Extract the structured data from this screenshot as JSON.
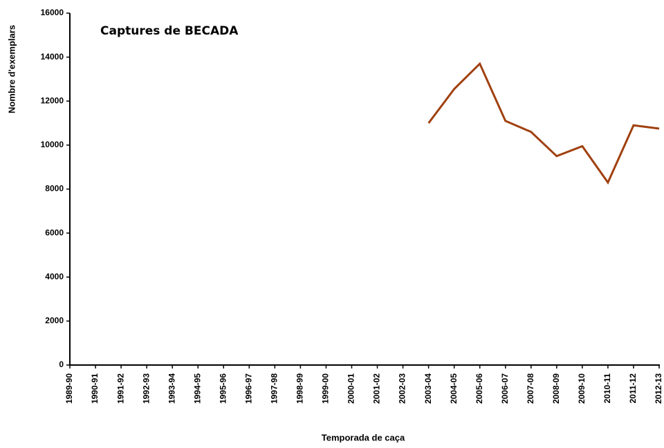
{
  "chart_data": {
    "type": "line",
    "title": "Captures de BECADA",
    "x_label": "Temporada de caça",
    "y_label": "Nombre d'exemplars",
    "categories": [
      "1989-90",
      "1990-91",
      "1991-92",
      "1992-93",
      "1993-94",
      "1994-95",
      "1995-96",
      "1996-97",
      "1997-98",
      "1998-99",
      "1999-00",
      "2000-01",
      "2001-02",
      "2002-03",
      "2003-04",
      "2004-05",
      "2005-06",
      "2006-07",
      "2007-08",
      "2008-09",
      "2009-10",
      "2010-11",
      "2011-12",
      "2012-13"
    ],
    "series": [
      {
        "name": "Captures de BECADA",
        "color": "#a0400f",
        "values": [
          null,
          null,
          null,
          null,
          null,
          null,
          null,
          null,
          null,
          null,
          null,
          null,
          null,
          null,
          11000,
          12550,
          13700,
          11100,
          10600,
          9500,
          9950,
          8300,
          10900,
          10750
        ]
      }
    ],
    "ylim": [
      0,
      16000
    ],
    "yticks": [
      0,
      2000,
      4000,
      6000,
      8000,
      10000,
      12000,
      14000,
      16000
    ],
    "grid": false
  }
}
